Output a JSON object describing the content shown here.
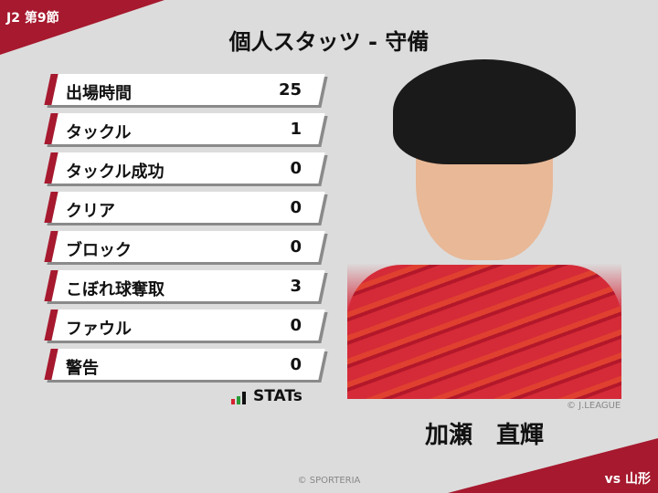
{
  "header": {
    "round": "J2 第9節",
    "title": "個人スタッツ - 守備",
    "opponent": "vs 山形"
  },
  "stats": [
    {
      "label": "出場時間",
      "value": "25"
    },
    {
      "label": "タックル",
      "value": "1"
    },
    {
      "label": "タックル成功",
      "value": "0"
    },
    {
      "label": "クリア",
      "value": "0"
    },
    {
      "label": "ブロック",
      "value": "0"
    },
    {
      "label": "こぼれ球奪取",
      "value": "3"
    },
    {
      "label": "ファウル",
      "value": "0"
    },
    {
      "label": "警告",
      "value": "0"
    }
  ],
  "logo": {
    "text": "STATs"
  },
  "player": {
    "name": "加瀬　直輝",
    "photo_credit": "© J.LEAGUE"
  },
  "footer": {
    "credit": "© SPORTERIA"
  },
  "colors": {
    "accent": "#a6192e",
    "background": "#dcdcdc"
  }
}
